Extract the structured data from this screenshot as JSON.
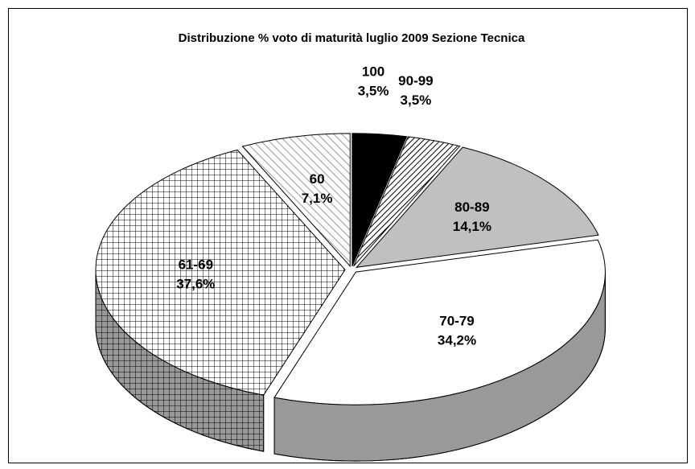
{
  "chart_data": {
    "type": "pie3d",
    "title": "Distribuzione % voto di maturità luglio 2009 Sezione Tecnica",
    "categories": [
      "100",
      "90-99",
      "80-89",
      "70-79",
      "61-69",
      "60"
    ],
    "values": [
      3.5,
      3.5,
      14.1,
      34.2,
      37.6,
      7.1
    ],
    "value_labels": [
      "3,5%",
      "3,5%",
      "14,1%",
      "34,2%",
      "37,6%",
      "7,1%"
    ],
    "colors": [
      "#000000",
      "#ffffff",
      "#c0c0c0",
      "#ffffff",
      "#ffffff",
      "#ffffff"
    ],
    "patterns": [
      "solid",
      "diag-dense",
      "solid",
      "solid",
      "grid",
      "diag-wide"
    ]
  }
}
